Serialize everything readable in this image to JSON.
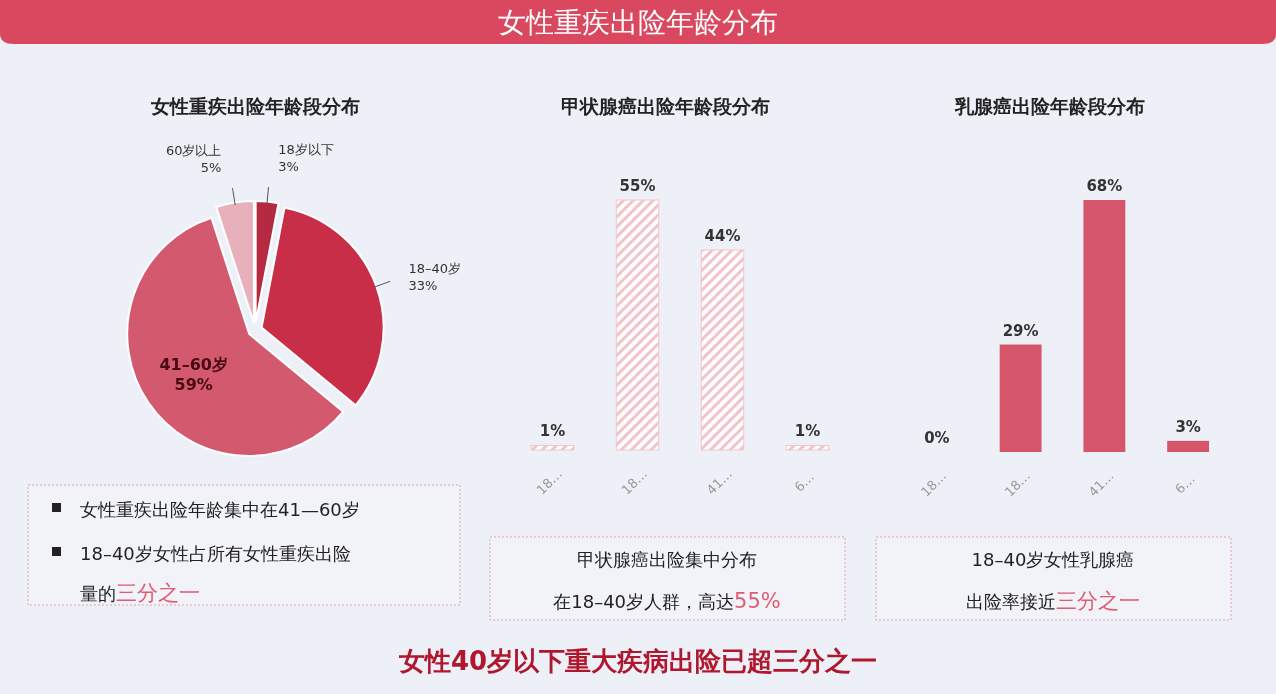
{
  "chart_data": [
    {
      "type": "pie",
      "title": "女性重疾出险年龄段分布",
      "categories": [
        "18岁以下",
        "18–40岁",
        "41–60岁",
        "60岁以上"
      ],
      "values": [
        3,
        33,
        59,
        5
      ],
      "value_labels": [
        "3%",
        "33%",
        "59%",
        "5%"
      ],
      "colors": [
        "#b52a40",
        "#c92e48",
        "#d35a6e",
        "#e8b0ba"
      ],
      "annotations": [
        "女性重疾出险年龄分布",
        "女性重疾出险年龄集中在41—60岁",
        "18–40岁女性占所有女性重疾出险量的",
        "三分之一",
        "女性40岁以下重大疾病出险已超三分之一"
      ]
    },
    {
      "type": "bar",
      "title": "甲状腺癌出险年龄段分布",
      "categories": [
        "18…",
        "18…",
        "41…",
        "6…"
      ],
      "values": [
        1,
        55,
        44,
        1
      ],
      "value_labels": [
        "1%",
        "55%",
        "44%",
        "1%"
      ],
      "color": "#f3c3ca",
      "annotations": [
        "甲状腺癌出险集中分布",
        "在18–40岁人群，高达",
        "55%"
      ]
    },
    {
      "type": "bar",
      "title": "乳腺癌出险年龄段分布",
      "categories": [
        "18…",
        "18…",
        "41…",
        "6…"
      ],
      "values": [
        0,
        29,
        68,
        3
      ],
      "value_labels": [
        "0%",
        "29%",
        "68%",
        "3%"
      ],
      "color": "#d5566a",
      "annotations": [
        "18–40岁女性乳腺癌",
        "出险率接近",
        "三分之一"
      ]
    }
  ]
}
